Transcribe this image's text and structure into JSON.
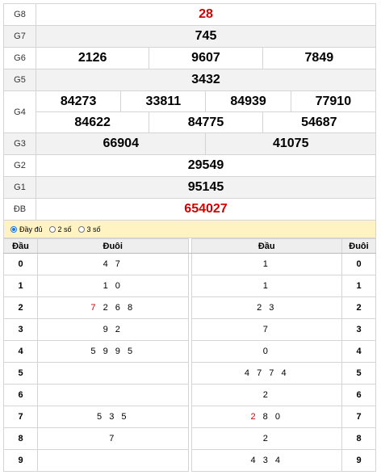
{
  "results": {
    "g8": {
      "label": "G8",
      "value": "28"
    },
    "g7": {
      "label": "G7",
      "value": "745"
    },
    "g6": {
      "label": "G6",
      "values": [
        "2126",
        "9607",
        "7849"
      ]
    },
    "g5": {
      "label": "G5",
      "value": "3432"
    },
    "g4": {
      "label": "G4",
      "row1": [
        "84273",
        "33811",
        "84939",
        "77910"
      ],
      "row2": [
        "84622",
        "84775",
        "54687"
      ]
    },
    "g3": {
      "label": "G3",
      "values": [
        "66904",
        "41075"
      ]
    },
    "g2": {
      "label": "G2",
      "value": "29549"
    },
    "g1": {
      "label": "G1",
      "value": "95145"
    },
    "db": {
      "label": "ĐB",
      "value": "654027"
    }
  },
  "options": {
    "full": "Đầy đủ",
    "two": "2 số",
    "three": "3 số",
    "selected": "full"
  },
  "loto": {
    "headers": {
      "dau": "Đầu",
      "duoi": "Đuôi",
      "dau2": "Đầu",
      "duoi2": "Đuôi"
    },
    "rows": [
      {
        "k": "0",
        "left": "4 7",
        "right": "1"
      },
      {
        "k": "1",
        "left": "1 0",
        "right": "1"
      },
      {
        "k": "2",
        "left_red": "7",
        "left": " 2 6 8",
        "right": "2 3"
      },
      {
        "k": "3",
        "left": "9 2",
        "right": "7"
      },
      {
        "k": "4",
        "left": "5 9 9 5",
        "right": "0"
      },
      {
        "k": "5",
        "left": "",
        "right": "4 7 7 4"
      },
      {
        "k": "6",
        "left": "",
        "right": "2"
      },
      {
        "k": "7",
        "left": "5 3 5",
        "right_red": "2",
        "right": " 8 0"
      },
      {
        "k": "8",
        "left": "7",
        "right": "2"
      },
      {
        "k": "9",
        "left": "",
        "right": "4 3 4"
      }
    ]
  },
  "colors": {
    "accent_red": "#d40000",
    "option_bar": "#fff3c4",
    "radio_blue": "#1a73e8"
  }
}
